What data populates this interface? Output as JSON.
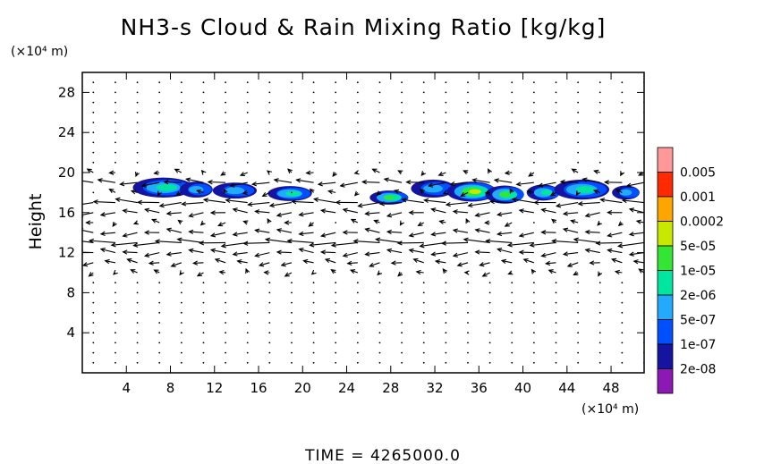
{
  "chart_data": {
    "type": "heatmap",
    "title": "NH3-s Cloud & Rain Mixing Ratio [kg/kg]",
    "ylabel": "Height",
    "x_unit": "(×10⁴ m)",
    "y_unit": "(×10⁴ m)",
    "xlim": [
      0,
      51
    ],
    "ylim": [
      0,
      30
    ],
    "x_ticks": [
      4,
      8,
      12,
      16,
      20,
      24,
      28,
      32,
      36,
      40,
      44,
      48
    ],
    "y_ticks": [
      4,
      8,
      12,
      16,
      20,
      24,
      28
    ],
    "time_label": "TIME  =  4265000.0",
    "legend": {
      "placement": "right",
      "levels": [
        {
          "label": "0.005",
          "color": "#ff9999"
        },
        {
          "label": "0.001",
          "color": "#ff2a00"
        },
        {
          "label": "0.0002",
          "color": "#ffa500"
        },
        {
          "label": "5e-05",
          "color": "#c8e800"
        },
        {
          "label": "1e-05",
          "color": "#33e633"
        },
        {
          "label": "2e-06",
          "color": "#00e6a0"
        },
        {
          "label": "5e-07",
          "color": "#22aaff"
        },
        {
          "label": "1e-07",
          "color": "#0050ff"
        },
        {
          "label": "2e-08",
          "color": "#1414a0"
        },
        {
          "label": "",
          "color": "#8c19b4"
        }
      ]
    },
    "cloud_blobs": [
      {
        "x": 7.5,
        "y": 18.5,
        "w": 5.5,
        "h": 2.0,
        "level": 5
      },
      {
        "x": 10.5,
        "y": 18.3,
        "w": 3.0,
        "h": 1.6,
        "level": 6
      },
      {
        "x": 14.0,
        "y": 18.2,
        "w": 4.0,
        "h": 1.6,
        "level": 6
      },
      {
        "x": 19.0,
        "y": 17.9,
        "w": 4.0,
        "h": 1.5,
        "level": 5
      },
      {
        "x": 28.0,
        "y": 17.5,
        "w": 3.5,
        "h": 1.4,
        "level": 4
      },
      {
        "x": 32.0,
        "y": 18.4,
        "w": 4.0,
        "h": 1.8,
        "level": 6
      },
      {
        "x": 35.5,
        "y": 18.1,
        "w": 4.5,
        "h": 2.0,
        "level": 3
      },
      {
        "x": 38.5,
        "y": 17.8,
        "w": 3.5,
        "h": 1.8,
        "level": 4
      },
      {
        "x": 42.0,
        "y": 18.0,
        "w": 3.0,
        "h": 1.6,
        "level": 5
      },
      {
        "x": 45.5,
        "y": 18.3,
        "w": 5.0,
        "h": 2.0,
        "level": 5
      },
      {
        "x": 49.5,
        "y": 18.0,
        "w": 2.5,
        "h": 1.4,
        "level": 6
      }
    ],
    "wind_field": {
      "type": "vectors",
      "x_start": 1.0,
      "x_step": 2.0,
      "x_count": 26,
      "y_start": 1.0,
      "y_step": 1.0,
      "y_count": 29,
      "strong_rows": [
        {
          "y": 19,
          "u": -1.2
        },
        {
          "y": 17,
          "u": -1.5
        },
        {
          "y": 16,
          "u": -1.0
        },
        {
          "y": 14,
          "u": -1.0
        },
        {
          "y": 13,
          "u": -1.8
        },
        {
          "y": 12,
          "u": -1.0
        },
        {
          "y": 11,
          "u": -0.7
        }
      ]
    }
  }
}
